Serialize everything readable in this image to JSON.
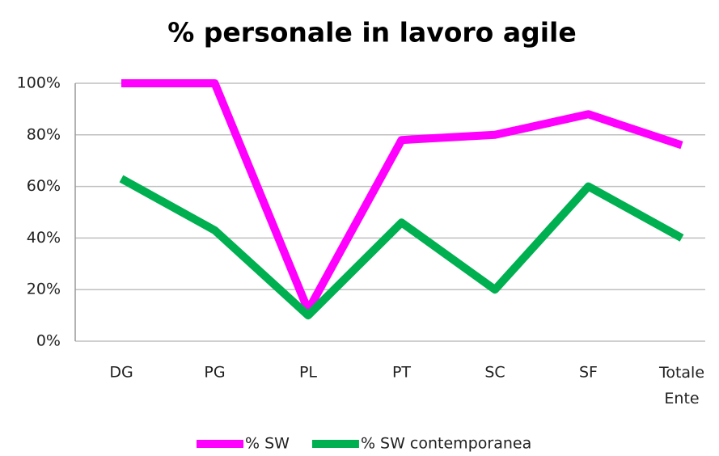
{
  "chart_data": {
    "type": "line",
    "title": "% personale in lavoro agile",
    "categories": [
      "DG",
      "PG",
      "PL",
      "PT",
      "SC",
      "SF",
      "Totale Ente"
    ],
    "series": [
      {
        "name": "% SW",
        "color": "#ff00ff",
        "values": [
          100,
          100,
          12,
          78,
          80,
          88,
          76
        ]
      },
      {
        "name": "% SW contemporanea",
        "color": "#00b050",
        "values": [
          63,
          43,
          10,
          46,
          20,
          60,
          40
        ]
      }
    ],
    "ylim": [
      0,
      100
    ],
    "yticks": [
      {
        "value": 0,
        "label": "0%"
      },
      {
        "value": 20,
        "label": "20%"
      },
      {
        "value": 40,
        "label": "40%"
      },
      {
        "value": 60,
        "label": "60%"
      },
      {
        "value": 80,
        "label": "80%"
      },
      {
        "value": 100,
        "label": "100%"
      }
    ],
    "grid": true,
    "legend": "bottom"
  }
}
